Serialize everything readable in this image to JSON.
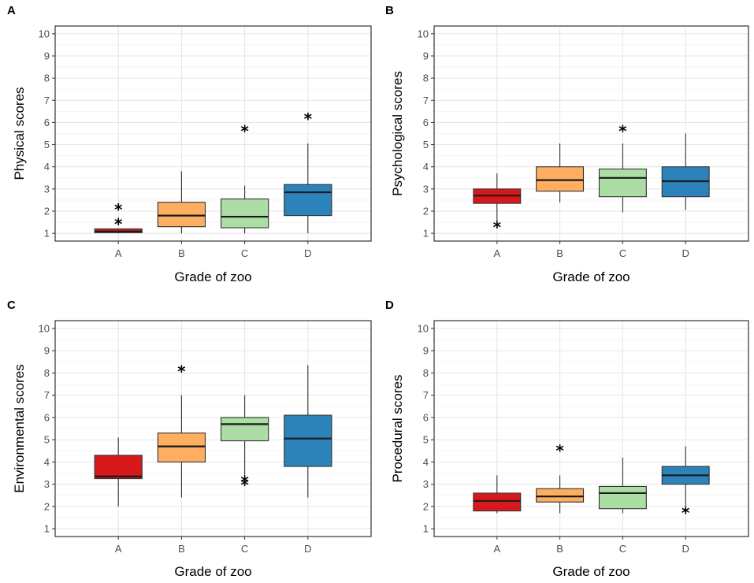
{
  "chart_data": [
    {
      "type": "box",
      "panel_label": "A",
      "xlabel": "Grade of zoo",
      "ylabel": "Physical scores",
      "categories": [
        "A",
        "B",
        "C",
        "D"
      ],
      "y_ticks": [
        1,
        2,
        3,
        4,
        5,
        6,
        7,
        8,
        9,
        10
      ],
      "ylim": [
        0.65,
        10.35
      ],
      "boxes": [
        {
          "category": "A",
          "whisker_low": 1.0,
          "q1": 1.03,
          "median": 1.08,
          "q3": 1.2,
          "whisker_high": 1.2,
          "outliers": [
            1.45,
            2.1
          ],
          "color": "#d7191c"
        },
        {
          "category": "B",
          "whisker_low": 1.0,
          "q1": 1.3,
          "median": 1.8,
          "q3": 2.4,
          "whisker_high": 3.8,
          "outliers": [],
          "color": "#fdae61"
        },
        {
          "category": "C",
          "whisker_low": 1.0,
          "q1": 1.25,
          "median": 1.75,
          "q3": 2.55,
          "whisker_high": 3.15,
          "outliers": [
            5.65
          ],
          "color": "#abdda4"
        },
        {
          "category": "D",
          "whisker_low": 1.0,
          "q1": 1.8,
          "median": 2.85,
          "q3": 3.2,
          "whisker_high": 5.05,
          "outliers": [
            6.2
          ],
          "color": "#2b83ba"
        }
      ]
    },
    {
      "type": "box",
      "panel_label": "B",
      "xlabel": "Grade of zoo",
      "ylabel": "Psychological scores",
      "categories": [
        "A",
        "B",
        "C",
        "D"
      ],
      "y_ticks": [
        1,
        2,
        3,
        4,
        5,
        6,
        7,
        8,
        9,
        10
      ],
      "ylim": [
        0.65,
        10.35
      ],
      "boxes": [
        {
          "category": "A",
          "whisker_low": 1.55,
          "q1": 2.35,
          "median": 2.7,
          "q3": 3.0,
          "whisker_high": 3.7,
          "outliers": [
            1.3
          ],
          "color": "#d7191c"
        },
        {
          "category": "B",
          "whisker_low": 2.4,
          "q1": 2.9,
          "median": 3.4,
          "q3": 4.0,
          "whisker_high": 5.05,
          "outliers": [],
          "color": "#fdae61"
        },
        {
          "category": "C",
          "whisker_low": 1.95,
          "q1": 2.65,
          "median": 3.5,
          "q3": 3.9,
          "whisker_high": 5.05,
          "outliers": [
            5.65
          ],
          "color": "#abdda4"
        },
        {
          "category": "D",
          "whisker_low": 2.05,
          "q1": 2.65,
          "median": 3.35,
          "q3": 4.0,
          "whisker_high": 5.5,
          "outliers": [],
          "color": "#2b83ba"
        }
      ]
    },
    {
      "type": "box",
      "panel_label": "C",
      "xlabel": "Grade of zoo",
      "ylabel": "Environmental scores",
      "categories": [
        "A",
        "B",
        "C",
        "D"
      ],
      "y_ticks": [
        1,
        2,
        3,
        4,
        5,
        6,
        7,
        8,
        9,
        10
      ],
      "ylim": [
        0.65,
        10.35
      ],
      "boxes": [
        {
          "category": "A",
          "whisker_low": 2.0,
          "q1": 3.25,
          "median": 3.35,
          "q3": 4.3,
          "whisker_high": 5.1,
          "outliers": [],
          "color": "#d7191c"
        },
        {
          "category": "B",
          "whisker_low": 2.4,
          "q1": 4.0,
          "median": 4.7,
          "q3": 5.3,
          "whisker_high": 7.0,
          "outliers": [
            8.1
          ],
          "color": "#fdae61"
        },
        {
          "category": "C",
          "whisker_low": 3.3,
          "q1": 4.95,
          "median": 5.7,
          "q3": 6.0,
          "whisker_high": 7.0,
          "outliers": [
            3.0,
            3.15
          ],
          "color": "#abdda4"
        },
        {
          "category": "D",
          "whisker_low": 2.4,
          "q1": 3.8,
          "median": 5.05,
          "q3": 6.1,
          "whisker_high": 8.35,
          "outliers": [],
          "color": "#2b83ba"
        }
      ]
    },
    {
      "type": "box",
      "panel_label": "D",
      "xlabel": "Grade of zoo",
      "ylabel": "Procedural scores",
      "categories": [
        "A",
        "B",
        "C",
        "D"
      ],
      "y_ticks": [
        1,
        2,
        3,
        4,
        5,
        6,
        7,
        8,
        9,
        10
      ],
      "ylim": [
        0.65,
        10.35
      ],
      "boxes": [
        {
          "category": "A",
          "whisker_low": 1.7,
          "q1": 1.8,
          "median": 2.25,
          "q3": 2.6,
          "whisker_high": 3.4,
          "outliers": [],
          "color": "#d7191c"
        },
        {
          "category": "B",
          "whisker_low": 1.7,
          "q1": 2.2,
          "median": 2.45,
          "q3": 2.8,
          "whisker_high": 3.4,
          "outliers": [
            4.55
          ],
          "color": "#fdae61"
        },
        {
          "category": "C",
          "whisker_low": 1.7,
          "q1": 1.9,
          "median": 2.6,
          "q3": 2.9,
          "whisker_high": 4.2,
          "outliers": [],
          "color": "#abdda4"
        },
        {
          "category": "D",
          "whisker_low": 1.9,
          "q1": 3.0,
          "median": 3.4,
          "q3": 3.8,
          "whisker_high": 4.7,
          "outliers": [
            1.75
          ],
          "color": "#2b83ba"
        }
      ]
    }
  ]
}
